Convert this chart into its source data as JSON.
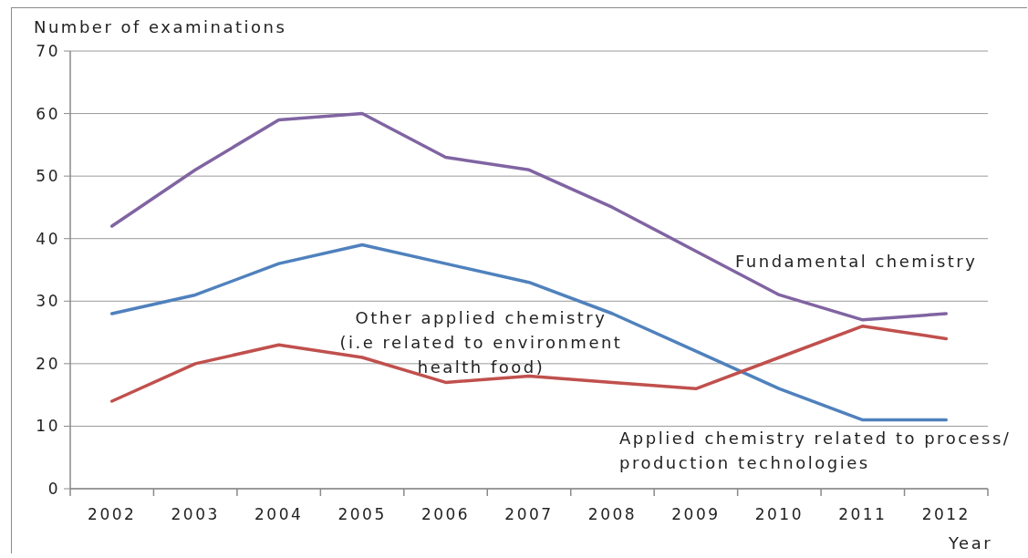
{
  "chart_data": {
    "type": "line",
    "ylabel": "Number of examinations",
    "xlabel": "Year",
    "categories": [
      "2002",
      "2003",
      "2004",
      "2005",
      "2006",
      "2007",
      "2008",
      "2009",
      "2010",
      "2011",
      "2012"
    ],
    "series": [
      {
        "name": "Fundamental chemistry",
        "color": "#8064a2",
        "values": [
          42,
          51,
          59,
          60,
          53,
          51,
          45,
          38,
          31,
          27,
          28
        ]
      },
      {
        "name": "Applied chemistry related to process/ production technologies",
        "color": "#4f81bd",
        "values": [
          28,
          31,
          36,
          39,
          36,
          33,
          28,
          22,
          16,
          11,
          11
        ]
      },
      {
        "name": "Other applied chemistry (i.e related to environment health food)",
        "color": "#c0504d",
        "values": [
          14,
          20,
          23,
          21,
          17,
          18,
          17,
          16,
          21,
          26,
          24
        ]
      }
    ],
    "ylim": [
      0,
      70
    ],
    "yticks": [
      0,
      10,
      20,
      30,
      40,
      50,
      60,
      70
    ],
    "grid": "y",
    "marker": "none",
    "line_style": "solid"
  }
}
